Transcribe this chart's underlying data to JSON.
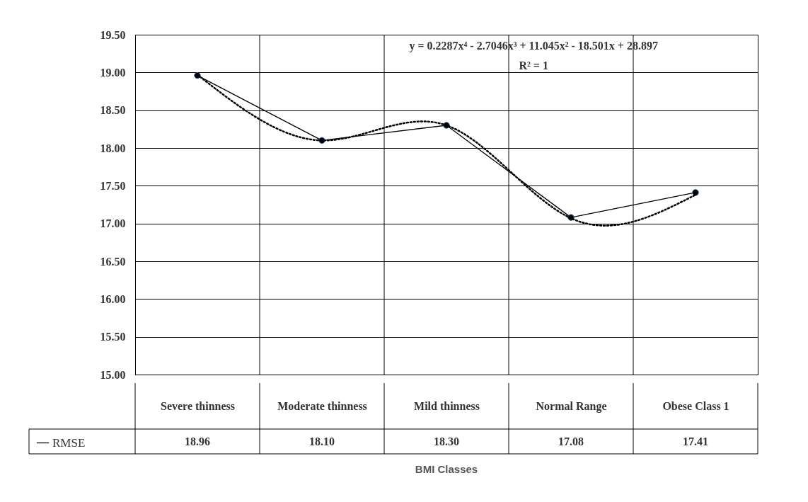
{
  "chart_data": {
    "type": "line",
    "xlabel": "BMI Classes",
    "categories": [
      "Severe thinness",
      "Moderate thinness",
      "Mild thinness",
      "Normal Range",
      "Obese Class 1"
    ],
    "series": [
      {
        "name": "RMSE",
        "color": "#000000",
        "values": [
          18.96,
          18.1,
          18.3,
          17.08,
          17.41
        ]
      },
      {
        "type": "line",
        "color": "#000000",
        "line_style": "dotted",
        "marker": "none",
        "values": [
          18.97,
          18.1,
          18.3,
          17.07,
          17.38
        ]
      }
    ],
    "value_labels": [
      "18.96",
      "18.10",
      "18.30",
      "17.08",
      "17.41"
    ],
    "ylim": [
      15,
      19.5
    ],
    "yticks": [
      {
        "value": 15,
        "label": "15.00"
      },
      {
        "value": 15.5,
        "label": "15.50"
      },
      {
        "value": 16,
        "label": "16.00"
      },
      {
        "value": 16.5,
        "label": "16.50"
      },
      {
        "value": 17,
        "label": "17.00"
      },
      {
        "value": 17.5,
        "label": "17.50"
      },
      {
        "value": 18,
        "label": "18.00"
      },
      {
        "value": 18.5,
        "label": "18.50"
      },
      {
        "value": 19,
        "label": "19.00"
      },
      {
        "value": 19.5,
        "label": "19.50"
      }
    ],
    "annotations": [
      "y = 0.2287x⁴ - 2.7046x³ + 11.045x² - 18.501x + 28.897",
      "R² = 1"
    ],
    "grid": true,
    "legend": "bottom left",
    "marker": "circle"
  }
}
